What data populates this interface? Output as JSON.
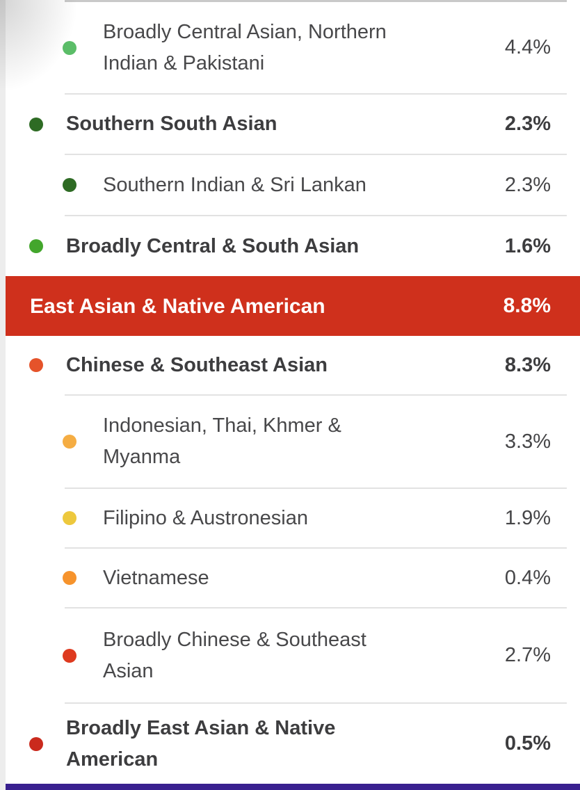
{
  "colors": {
    "header_bg": "#cf301c",
    "next_section_bar": "#39208f",
    "divider": "#e2e2e2"
  },
  "header": {
    "label": "East Asian & Native American",
    "value": "8.8%"
  },
  "rows": [
    {
      "lines": [
        "Broadly Central Asian, Northern",
        "Indian & Pakistani"
      ],
      "value": "4.4%",
      "dot_color": "#5bbd68",
      "level": "sub"
    },
    {
      "lines": [
        "Southern South Asian"
      ],
      "value": "2.3%",
      "dot_color": "#2e6b24",
      "level": "top"
    },
    {
      "lines": [
        "Southern Indian & Sri Lankan"
      ],
      "value": "2.3%",
      "dot_color": "#2e6b24",
      "level": "sub"
    },
    {
      "lines": [
        "Broadly Central & South Asian"
      ],
      "value": "1.6%",
      "dot_color": "#43a62c",
      "level": "top"
    },
    {
      "lines": [
        "Chinese & Southeast Asian"
      ],
      "value": "8.3%",
      "dot_color": "#e5532a",
      "level": "top"
    },
    {
      "lines": [
        "Indonesian, Thai, Khmer &",
        "Myanma"
      ],
      "value": "3.3%",
      "dot_color": "#f5ad43",
      "level": "sub"
    },
    {
      "lines": [
        "Filipino & Austronesian"
      ],
      "value": "1.9%",
      "dot_color": "#edc83d",
      "level": "sub"
    },
    {
      "lines": [
        "Vietnamese"
      ],
      "value": "0.4%",
      "dot_color": "#f6932c",
      "level": "sub"
    },
    {
      "lines": [
        "Broadly Chinese & Southeast",
        "Asian"
      ],
      "value": "2.7%",
      "dot_color": "#de3a1f",
      "level": "sub"
    },
    {
      "lines": [
        "Broadly East Asian & Native",
        "American"
      ],
      "value": "0.5%",
      "dot_color": "#ca2a1d",
      "level": "top"
    }
  ]
}
